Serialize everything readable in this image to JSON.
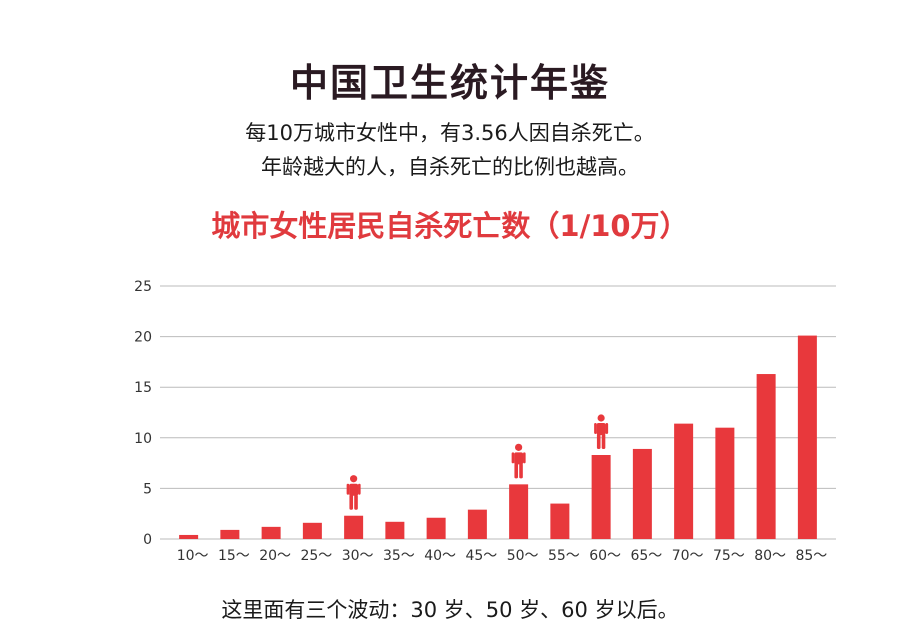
{
  "header": {
    "title": "中国卫生统计年鉴",
    "subtitle_line1": "每10万城市女性中，有3.56人因自杀死亡。",
    "subtitle_line2": "年龄越大的人，自杀死亡的比例也越高。"
  },
  "footnote": "这里面有三个波动：30 岁、50 岁、60 岁以后。",
  "colors": {
    "bar": "#e8383c",
    "icon": "#e8383c",
    "grid": "#bbbbbb"
  },
  "chart_data": {
    "type": "bar",
    "title": "城市女性居民自杀死亡数（1/10万）",
    "xlabel": "",
    "ylabel": "",
    "categories": [
      "10～",
      "15～",
      "20～",
      "25～",
      "30～",
      "35～",
      "40～",
      "45～",
      "50～",
      "55～",
      "60～",
      "65～",
      "70～",
      "75～",
      "80～",
      "85～"
    ],
    "values": [
      0.4,
      0.9,
      1.2,
      1.6,
      2.3,
      1.7,
      2.1,
      2.9,
      5.4,
      3.5,
      8.3,
      8.9,
      11.4,
      11.0,
      16.3,
      20.1
    ],
    "ylim": [
      0,
      25
    ],
    "yticks": [
      0,
      5,
      10,
      15,
      20,
      25
    ],
    "grid": true,
    "highlighted_categories": [
      "30～",
      "50～",
      "60～"
    ],
    "highlight_icon": "person-icon"
  }
}
